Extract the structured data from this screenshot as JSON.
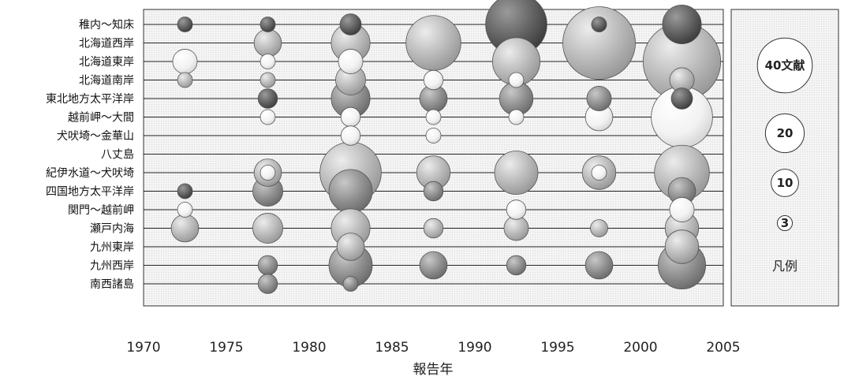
{
  "chart_data": {
    "type": "bubble",
    "xlabel": "報告年",
    "x_ticks": [
      1970,
      1975,
      1980,
      1985,
      1990,
      1995,
      2000,
      2005
    ],
    "xlim": [
      1970,
      2005
    ],
    "categories": [
      "稚内～知床",
      "北海道西岸",
      "北海道東岸",
      "北海道南岸",
      "東北地方太平洋岸",
      "越前岬～大間",
      "犬吠埼～金華山",
      "八丈島",
      "紀伊水道～犬吠埼",
      "四国地方太平洋岸",
      "関門～越前岬",
      "瀬戸内海",
      "九州東岸",
      "九州西岸",
      "南西諸島"
    ],
    "colors": {
      "dark": "#5a5a5a",
      "mid": "#8c8c8c",
      "light": "#b4b4b4",
      "pale": "#eeeeee"
    },
    "points": [
      {
        "year": 1972.5,
        "region": "稚内～知床",
        "count": 3,
        "shade": "dark"
      },
      {
        "year": 1972.5,
        "region": "北海道東岸",
        "count": 8,
        "shade": "pale"
      },
      {
        "year": 1972.5,
        "region": "北海道南岸",
        "count": 3,
        "shade": "light"
      },
      {
        "year": 1972.5,
        "region": "四国地方太平洋岸",
        "count": 3,
        "shade": "dark"
      },
      {
        "year": 1972.5,
        "region": "関門～越前岬",
        "count": 3,
        "shade": "pale"
      },
      {
        "year": 1972.5,
        "region": "瀬戸内海",
        "count": 10,
        "shade": "light"
      },
      {
        "year": 1977.5,
        "region": "稚内～知床",
        "count": 3,
        "shade": "dark"
      },
      {
        "year": 1977.5,
        "region": "北海道西岸",
        "count": 10,
        "shade": "light"
      },
      {
        "year": 1977.5,
        "region": "北海道東岸",
        "count": 3,
        "shade": "pale"
      },
      {
        "year": 1977.5,
        "region": "北海道南岸",
        "count": 3,
        "shade": "light"
      },
      {
        "year": 1977.5,
        "region": "東北地方太平洋岸",
        "count": 5,
        "shade": "dark"
      },
      {
        "year": 1977.5,
        "region": "越前岬～大間",
        "count": 3,
        "shade": "pale"
      },
      {
        "year": 1977.5,
        "region": "紀伊水道～犬吠埼",
        "count": 3,
        "shade": "pale"
      },
      {
        "year": 1977.5,
        "region": "紀伊水道～犬吠埼",
        "count": 10,
        "shade": "light"
      },
      {
        "year": 1977.5,
        "region": "四国地方太平洋岸",
        "count": 12,
        "shade": "mid"
      },
      {
        "year": 1977.5,
        "region": "瀬戸内海",
        "count": 12,
        "shade": "light"
      },
      {
        "year": 1977.5,
        "region": "九州西岸",
        "count": 5,
        "shade": "mid"
      },
      {
        "year": 1977.5,
        "region": "南西諸島",
        "count": 5,
        "shade": "mid"
      },
      {
        "year": 1982.5,
        "region": "稚内～知床",
        "count": 6,
        "shade": "dark"
      },
      {
        "year": 1982.5,
        "region": "北海道西岸",
        "count": 20,
        "shade": "light"
      },
      {
        "year": 1982.5,
        "region": "北海道東岸",
        "count": 8,
        "shade": "pale"
      },
      {
        "year": 1982.5,
        "region": "北海道南岸",
        "count": 12,
        "shade": "light"
      },
      {
        "year": 1982.5,
        "region": "東北地方太平洋岸",
        "count": 20,
        "shade": "mid"
      },
      {
        "year": 1982.5,
        "region": "越前岬～大間",
        "count": 5,
        "shade": "pale"
      },
      {
        "year": 1982.5,
        "region": "犬吠埼～金華山",
        "count": 5,
        "shade": "pale"
      },
      {
        "year": 1982.5,
        "region": "四国地方太平洋岸",
        "count": 25,
        "shade": "mid"
      },
      {
        "year": 1982.5,
        "region": "紀伊水道～犬吠埼",
        "count": 50,
        "shade": "light"
      },
      {
        "year": 1982.5,
        "region": "瀬戸内海",
        "count": 20,
        "shade": "light"
      },
      {
        "year": 1982.5,
        "region": "九州東岸",
        "count": 10,
        "shade": "light"
      },
      {
        "year": 1982.5,
        "region": "九州西岸",
        "count": 25,
        "shade": "mid"
      },
      {
        "year": 1982.5,
        "region": "南西諸島",
        "count": 3,
        "shade": "mid"
      },
      {
        "year": 1987.5,
        "region": "北海道西岸",
        "count": 40,
        "shade": "light"
      },
      {
        "year": 1987.5,
        "region": "北海道南岸",
        "count": 5,
        "shade": "pale"
      },
      {
        "year": 1987.5,
        "region": "東北地方太平洋岸",
        "count": 10,
        "shade": "mid"
      },
      {
        "year": 1987.5,
        "region": "越前岬～大間",
        "count": 3,
        "shade": "pale"
      },
      {
        "year": 1987.5,
        "region": "犬吠埼～金華山",
        "count": 3,
        "shade": "pale"
      },
      {
        "year": 1987.5,
        "region": "紀伊水道～犬吠埼",
        "count": 15,
        "shade": "light"
      },
      {
        "year": 1987.5,
        "region": "四国地方太平洋岸",
        "count": 5,
        "shade": "mid"
      },
      {
        "year": 1987.5,
        "region": "瀬戸内海",
        "count": 5,
        "shade": "light"
      },
      {
        "year": 1987.5,
        "region": "九州西岸",
        "count": 10,
        "shade": "mid"
      },
      {
        "year": 1992.5,
        "region": "北海道東岸",
        "count": 30,
        "shade": "light"
      },
      {
        "year": 1992.5,
        "region": "稚内～知床",
        "count": 50,
        "shade": "dark"
      },
      {
        "year": 1992.5,
        "region": "北海道南岸",
        "count": 3,
        "shade": "pale"
      },
      {
        "year": 1992.5,
        "region": "東北地方太平洋岸",
        "count": 15,
        "shade": "mid"
      },
      {
        "year": 1992.5,
        "region": "越前岬～大間",
        "count": 3,
        "shade": "pale"
      },
      {
        "year": 1992.5,
        "region": "紀伊水道～犬吠埼",
        "count": 25,
        "shade": "light"
      },
      {
        "year": 1992.5,
        "region": "関門～越前岬",
        "count": 5,
        "shade": "pale"
      },
      {
        "year": 1992.5,
        "region": "瀬戸内海",
        "count": 8,
        "shade": "light"
      },
      {
        "year": 1992.5,
        "region": "九州西岸",
        "count": 5,
        "shade": "mid"
      },
      {
        "year": 1997.5,
        "region": "北海道西岸",
        "count": 70,
        "shade": "light"
      },
      {
        "year": 1997.5,
        "region": "稚内～知床",
        "count": 3,
        "shade": "dark"
      },
      {
        "year": 1997.5,
        "region": "東北地方太平洋岸",
        "count": 8,
        "shade": "mid"
      },
      {
        "year": 1997.5,
        "region": "越前岬～大間",
        "count": 10,
        "shade": "pale"
      },
      {
        "year": 1997.5,
        "region": "紀伊水道～犬吠埼",
        "count": 3,
        "shade": "pale"
      },
      {
        "year": 1997.5,
        "region": "紀伊水道～犬吠埼",
        "count": 15,
        "shade": "light"
      },
      {
        "year": 1997.5,
        "region": "瀬戸内海",
        "count": 4,
        "shade": "light"
      },
      {
        "year": 1997.5,
        "region": "九州西岸",
        "count": 10,
        "shade": "mid"
      },
      {
        "year": 2002.5,
        "region": "北海道東岸",
        "count": 80,
        "shade": "light"
      },
      {
        "year": 2002.5,
        "region": "稚内～知床",
        "count": 20,
        "shade": "dark"
      },
      {
        "year": 2002.5,
        "region": "北海道南岸",
        "count": 8,
        "shade": "light"
      },
      {
        "year": 2002.5,
        "region": "東北地方太平洋岸",
        "count": 6,
        "shade": "dark"
      },
      {
        "year": 2002.5,
        "region": "越前岬～大間",
        "count": 50,
        "shade": "pale"
      },
      {
        "year": 2002.5,
        "region": "紀伊水道～犬吠埼",
        "count": 40,
        "shade": "light"
      },
      {
        "year": 2002.5,
        "region": "四国地方太平洋岸",
        "count": 10,
        "shade": "mid"
      },
      {
        "year": 2002.5,
        "region": "関門～越前岬",
        "count": 8,
        "shade": "pale"
      },
      {
        "year": 2002.5,
        "region": "瀬戸内海",
        "count": 15,
        "shade": "light"
      },
      {
        "year": 2002.5,
        "region": "九州東岸",
        "count": 15,
        "shade": "light"
      },
      {
        "year": 2002.5,
        "region": "九州西岸",
        "count": 30,
        "shade": "mid"
      }
    ],
    "legend": {
      "title": "凡例",
      "items": [
        {
          "count": 40,
          "label": "40文献"
        },
        {
          "count": 20,
          "label": "20"
        },
        {
          "count": 10,
          "label": "10"
        },
        {
          "count": 3,
          "label": "3"
        }
      ]
    }
  }
}
